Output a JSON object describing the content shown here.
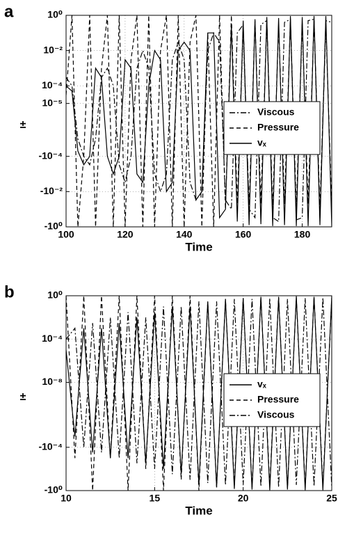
{
  "chart_data": [
    {
      "type": "line",
      "label": "a",
      "xlabel": "Time",
      "ylabel": "±",
      "scale": "symlog",
      "linthresh": 1e-05,
      "x": [
        100,
        102,
        104,
        106,
        108,
        110,
        112,
        114,
        116,
        118,
        120,
        122,
        124,
        126,
        128,
        130,
        132,
        134,
        136,
        138,
        140,
        142,
        144,
        146,
        148,
        150,
        152,
        154,
        156,
        158,
        160,
        162,
        164,
        166,
        168,
        170,
        172,
        174,
        176,
        178,
        180,
        182,
        184,
        186,
        188,
        190
      ],
      "xlim": [
        100,
        190
      ],
      "xticks": [
        100,
        120,
        140,
        160,
        180
      ],
      "ylim": [
        -1,
        1
      ],
      "yticks": [
        {
          "value": 1,
          "label": "10⁰"
        },
        {
          "value": 0.01,
          "label": "10⁻²"
        },
        {
          "value": 0.0001,
          "label": "10⁻⁴"
        },
        {
          "value": 1e-05,
          "label": "10⁻⁵"
        },
        {
          "value": -0.0001,
          "label": "-10⁻⁴"
        },
        {
          "value": -0.01,
          "label": "-10⁻²"
        },
        {
          "value": -1,
          "label": "-10⁰"
        }
      ],
      "grid": true,
      "legend": "center right",
      "series": [
        {
          "name": "Viscous",
          "color": "#000000",
          "style": "dashdot",
          "values": [
            0.0003,
            0.0001,
            -1e-05,
            -0.0001,
            -0.0003,
            -1e-05,
            0.0003,
            0.001,
            0.0001,
            -0.0003,
            -0.003,
            -0.0001,
            0.001,
            0.01,
            0.001,
            -0.001,
            -0.01,
            -0.001,
            0.003,
            0.03,
            0.003,
            -0.003,
            -0.03,
            -0.01,
            0.01,
            0.1,
            0.03,
            -0.03,
            -0.1,
            0.1,
            0.3,
            -0.1,
            -0.3,
            0.3,
            0.5,
            -0.3,
            -0.5,
            0.4,
            0.6,
            -0.4,
            -0.3,
            0.5,
            0.6,
            -0.3,
            0.5,
            0.4
          ]
        },
        {
          "name": "Pressure",
          "color": "#000000",
          "style": "dash",
          "values": [
            3e-05,
            1,
            -1,
            -0.0001,
            1,
            -1,
            0.001,
            1,
            -1,
            1,
            -1,
            0.003,
            1,
            -1,
            1,
            -1,
            0.01,
            1,
            -1,
            1,
            -1,
            0.03,
            1,
            -1,
            0.1,
            -1,
            1,
            -0.1,
            1,
            -0.05,
            0.3,
            -0.1,
            0.5,
            -0.05,
            0.5,
            -0.1,
            0.3,
            -0.05,
            0.5,
            -0.1,
            0.4,
            -0.05,
            0.5,
            -0.1,
            0.3,
            -0.1
          ]
        },
        {
          "name": "vₓ",
          "color": "#000000",
          "style": "solid",
          "values": [
            0.0001,
            5e-05,
            -5e-05,
            -0.0003,
            -0.0001,
            0.001,
            0.0003,
            -0.0001,
            -0.001,
            -0.0001,
            0.003,
            0.001,
            -0.001,
            -0.003,
            0.0001,
            0.01,
            0.003,
            -0.01,
            -0.003,
            0.01,
            0.03,
            0.01,
            -0.03,
            -0.01,
            0.1,
            0.1,
            -0.3,
            -0.1,
            0.3,
            -0.5,
            0.5,
            -0.8,
            0.6,
            -0.7,
            0.8,
            -0.9,
            0.7,
            -0.8,
            0.9,
            -0.9,
            0.8,
            -0.9,
            0.9,
            -0.8,
            0.9,
            -0.9
          ]
        }
      ]
    },
    {
      "type": "line",
      "label": "b",
      "xlabel": "Time",
      "ylabel": "±",
      "scale": "symlog",
      "linthresh": 1e-08,
      "x": [
        10,
        10.5,
        11,
        11.5,
        12,
        12.5,
        13,
        13.5,
        14,
        14.5,
        15,
        15.5,
        16,
        16.5,
        17,
        17.5,
        18,
        18.5,
        19,
        19.5,
        20,
        20.5,
        21,
        21.5,
        22,
        22.5,
        23,
        23.5,
        24,
        24.5,
        25
      ],
      "xlim": [
        10,
        25
      ],
      "xticks": [
        10,
        15,
        20,
        25
      ],
      "ylim": [
        -1,
        1
      ],
      "yticks": [
        {
          "value": 1,
          "label": "10⁰"
        },
        {
          "value": 0.0001,
          "label": "10⁻⁴"
        },
        {
          "value": 1e-08,
          "label": "10⁻⁸"
        },
        {
          "value": -0.0001,
          "label": "-10⁻⁴"
        },
        {
          "value": -1,
          "label": "-10⁰"
        }
      ],
      "grid": true,
      "legend": "center right",
      "series": [
        {
          "name": "vₓ",
          "color": "#000000",
          "style": "solid",
          "values": [
            1e-05,
            -1e-05,
            0.001,
            -0.0003,
            0.001,
            -0.001,
            0.003,
            -0.001,
            0.01,
            -0.003,
            0.03,
            -0.01,
            0.1,
            -0.03,
            0.1,
            -0.3,
            0.3,
            -0.5,
            0.5,
            -0.7,
            0.6,
            -0.8,
            0.8,
            -0.9,
            0.7,
            -0.8,
            0.9,
            -0.9,
            0.8,
            -0.9,
            0.9
          ]
        },
        {
          "name": "Pressure",
          "color": "#000000",
          "style": "dash",
          "values": [
            1,
            -0.001,
            1,
            -1,
            1,
            -0.001,
            1,
            -1,
            1,
            -0.01,
            1,
            -1,
            1,
            -0.1,
            1,
            -1,
            0.3,
            -0.5,
            0.5,
            -0.3,
            0.6,
            -0.5,
            0.7,
            -0.4,
            0.8,
            -0.6,
            0.7,
            -0.5,
            0.8,
            -0.4,
            0.6
          ]
        },
        {
          "name": "Viscous",
          "color": "#000000",
          "style": "dashdot",
          "values": [
            0.0001,
            0.001,
            -0.0001,
            0.003,
            -0.0003,
            0.01,
            -0.001,
            0.03,
            -0.003,
            0.01,
            -0.01,
            0.1,
            -0.03,
            0.1,
            -0.1,
            0.3,
            -0.2,
            0.3,
            -0.3,
            0.5,
            -0.3,
            0.5,
            -0.4,
            0.6,
            -0.5,
            0.5,
            -0.3,
            0.6,
            -0.4,
            0.7,
            -0.5
          ]
        }
      ]
    }
  ]
}
